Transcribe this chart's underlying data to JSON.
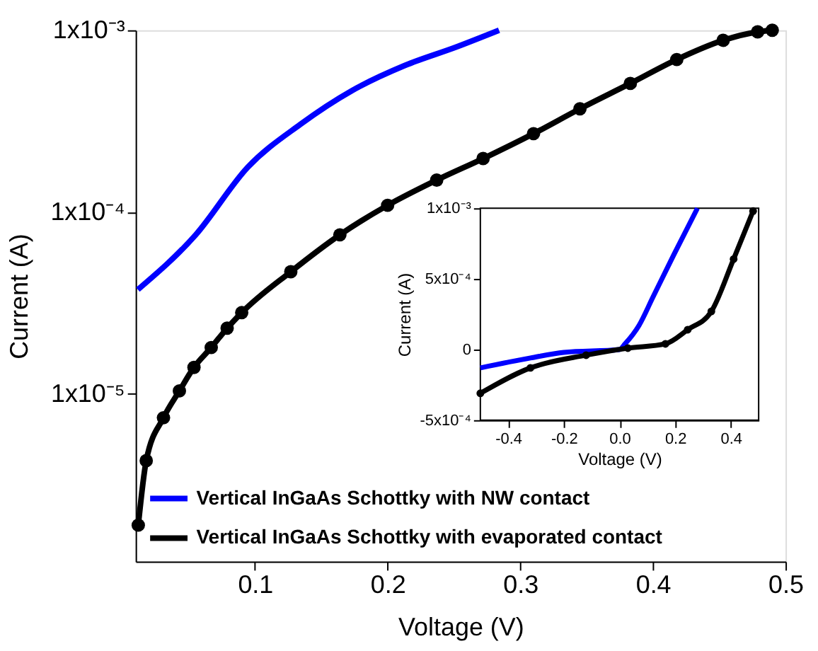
{
  "chart_data": [
    {
      "type": "line",
      "xlabel": "Voltage (V)",
      "ylabel": "Current (A)",
      "xlim": [
        0.01,
        0.5
      ],
      "xticks": [
        0.1,
        0.2,
        0.3,
        0.4,
        0.5
      ],
      "ylim": [
        1.2e-06,
        0.001
      ],
      "log": "y",
      "yticks": [
        {
          "value": 0.001,
          "label": "1x10⁻³"
        },
        {
          "value": 0.0001,
          "label": "1x10⁻⁴"
        },
        {
          "value": 1e-05,
          "label": "1x10⁻⁵"
        }
      ],
      "grid": false,
      "legend": "bottom left",
      "series": [
        {
          "name": "Vertical InGaAs Schottky with NW contact",
          "color": "#0000ff",
          "marker": "none",
          "x": [
            0.0117,
            0.0553,
            0.0947,
            0.134,
            0.173,
            0.213,
            0.252,
            0.284
          ],
          "values": [
            3.75e-05,
            7.5e-05,
            0.000177,
            0.000303,
            0.000465,
            0.00064,
            0.00081,
            0.001
          ]
        },
        {
          "name": "Vertical InGaAs Schottky with evaporated contact",
          "color": "#000000",
          "marker": "circle",
          "x": [
            0.012,
            0.018,
            0.031,
            0.043,
            0.054,
            0.067,
            0.079,
            0.09,
            0.127,
            0.164,
            0.2,
            0.237,
            0.272,
            0.31,
            0.345,
            0.383,
            0.418,
            0.453,
            0.479,
            0.49
          ],
          "values": [
            1.9e-06,
            4.3e-06,
            7.4e-06,
            1.04e-05,
            1.4e-05,
            1.8e-05,
            2.3e-05,
            2.8e-05,
            4.7e-05,
            7.5e-05,
            0.000109,
            0.00015,
            0.000197,
            0.00027,
            0.00037,
            0.00051,
            0.00069,
            0.00088,
            0.00098,
            0.001
          ]
        }
      ]
    },
    {
      "type": "line",
      "xlabel": "Voltage (V)",
      "ylabel": "Current (A)",
      "xlim": [
        -0.5,
        0.5
      ],
      "xticks": [
        -0.4,
        -0.2,
        {
          "value": 0,
          "label": "0.0"
        },
        0.2,
        0.4
      ],
      "ylim": [
        -0.0005,
        0.001
      ],
      "yticks": [
        {
          "value": -0.0005,
          "label": "-5x10⁻⁴"
        },
        0,
        {
          "value": 0.0005,
          "label": "5x10⁻⁴"
        },
        {
          "value": 0.001,
          "label": "1x10⁻³"
        }
      ],
      "grid": false,
      "legend": false,
      "series": [
        {
          "color": "#0000ff",
          "marker": "none",
          "x": [
            -0.5,
            -0.32,
            -0.2,
            0,
            0.02,
            0.07,
            0.12,
            0.195,
            0.28
          ],
          "values": [
            -0.00013,
            -6e-05,
            -2e-05,
            0,
            4e-05,
            0.00017,
            0.00037,
            0.00067,
            0.001
          ]
        },
        {
          "color": "#000000",
          "marker": "circle",
          "x": [
            -0.5,
            -0.32,
            -0.12,
            0.03,
            0.165,
            0.245,
            0.33,
            0.41,
            0.48
          ],
          "values": [
            -0.00031,
            -0.00013,
            -4e-05,
            1e-05,
            4e-05,
            0.00014,
            0.00027,
            0.00064,
            0.00098
          ]
        }
      ]
    }
  ]
}
